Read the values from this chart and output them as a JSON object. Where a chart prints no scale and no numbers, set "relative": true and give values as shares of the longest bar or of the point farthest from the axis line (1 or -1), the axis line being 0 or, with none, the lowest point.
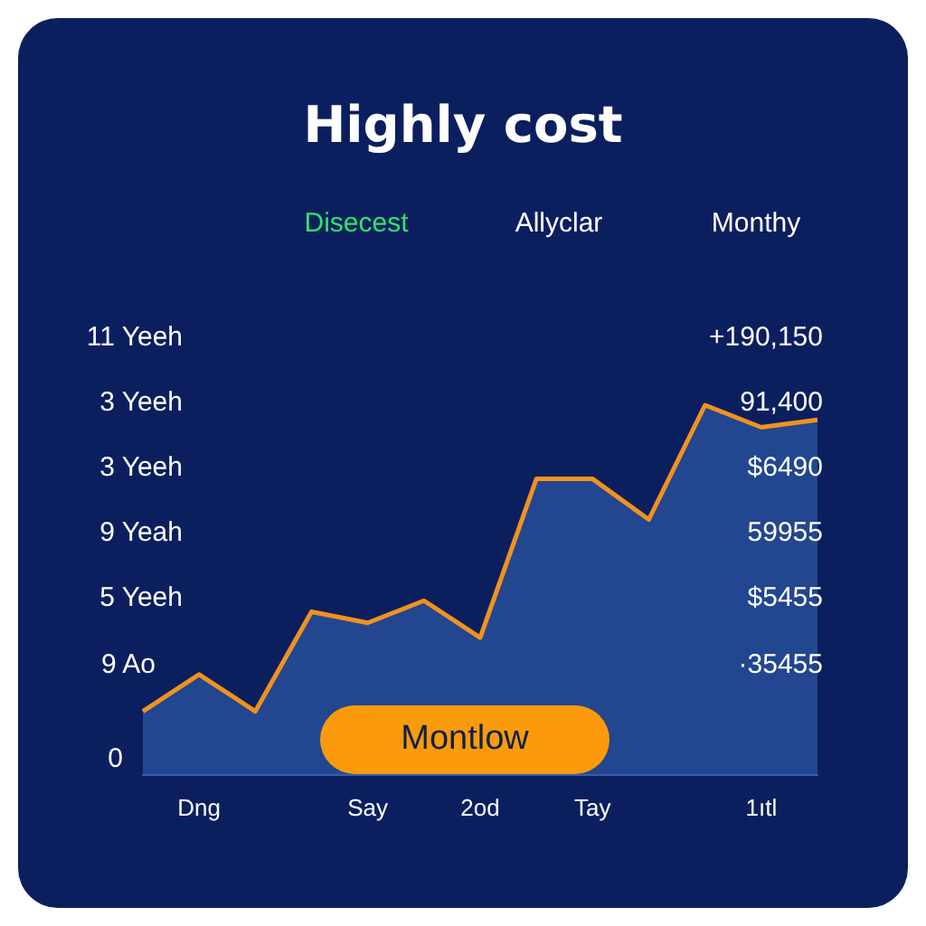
{
  "chart_data": {
    "type": "area",
    "title": "Highly cost",
    "relative": true,
    "marker": "none",
    "categories": [
      null,
      "Dng",
      null,
      null,
      "Say",
      null,
      "2od",
      null,
      "Tay",
      null,
      null,
      "1ıtl",
      null
    ],
    "series": [
      {
        "color": "#22468f",
        "values": [
          0.17,
          0.27,
          0.17,
          0.44,
          0.41,
          0.47,
          0.37,
          0.8,
          0.8,
          0.69,
          1,
          0.94,
          0.96
        ]
      },
      {
        "type": "line",
        "color": "#f0921e",
        "values": [
          0.17,
          0.27,
          0.17,
          0.44,
          0.41,
          0.47,
          0.37,
          0.8,
          0.8,
          0.69,
          1,
          0.94,
          0.96
        ]
      }
    ],
    "annotations": [
      "Disecest",
      "Allyclar",
      "Monthy",
      "11 Yeeh",
      "3 Yeeh",
      "3 Yeeh",
      "9 Yeah",
      "5 Yeeh",
      "9 Ao",
      "0",
      "+190,150",
      "91,400",
      "$6490",
      "59955",
      "$5455",
      "·35455",
      "Montlow"
    ]
  }
}
